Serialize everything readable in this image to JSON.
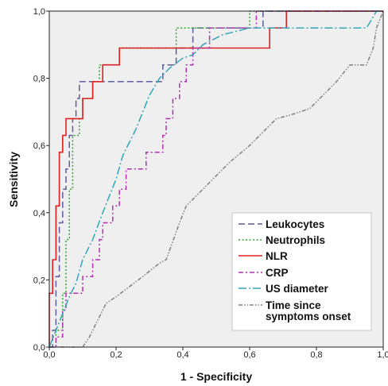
{
  "chart_data": {
    "type": "line",
    "title": "",
    "xlabel": "1 - Specificity",
    "ylabel": "Sensitivity",
    "xlim": [
      0,
      1
    ],
    "ylim": [
      0,
      1
    ],
    "xticks": [
      "0,0",
      "0,2",
      "0,4",
      "0,6",
      "0,8",
      "1,0"
    ],
    "yticks": [
      "0,0",
      "0,2",
      "0,4",
      "0,6",
      "0,8",
      "1,0"
    ],
    "grid": false,
    "legend_position": "bottom-right",
    "background": "#efefef",
    "series": [
      {
        "name": "Leukocytes",
        "color": "#5c5c9c",
        "dash": "long-dash",
        "x": [
          0,
          0.01,
          0.01,
          0.02,
          0.02,
          0.03,
          0.03,
          0.04,
          0.04,
          0.05,
          0.05,
          0.06,
          0.06,
          0.07,
          0.07,
          0.08,
          0.08,
          0.09,
          0.09,
          0.1,
          0.1,
          0.34,
          0.34,
          0.38,
          0.38,
          0.43,
          0.43,
          0.64,
          0.64,
          0.72,
          0.72,
          0.98,
          0.98,
          1
        ],
        "y": [
          0,
          0,
          0.05,
          0.05,
          0.21,
          0.21,
          0.37,
          0.37,
          0.47,
          0.47,
          0.53,
          0.53,
          0.63,
          0.63,
          0.68,
          0.68,
          0.74,
          0.74,
          0.79,
          0.79,
          0.79,
          0.79,
          0.84,
          0.84,
          0.89,
          0.89,
          0.95,
          0.95,
          1.0,
          1.0,
          1.0,
          1.0,
          1.0,
          1.0
        ]
      },
      {
        "name": "Neutrophils",
        "color": "#2aa82a",
        "dash": "dotted",
        "x": [
          0,
          0.02,
          0.02,
          0.04,
          0.04,
          0.05,
          0.05,
          0.06,
          0.06,
          0.07,
          0.07,
          0.09,
          0.09,
          0.1,
          0.1,
          0.13,
          0.13,
          0.15,
          0.15,
          0.21,
          0.21,
          0.34,
          0.34,
          0.38,
          0.38,
          0.6,
          0.6,
          0.71,
          0.71,
          0.98,
          0.98,
          1
        ],
        "y": [
          0,
          0,
          0.05,
          0.05,
          0.16,
          0.16,
          0.32,
          0.32,
          0.47,
          0.47,
          0.63,
          0.63,
          0.68,
          0.68,
          0.74,
          0.74,
          0.79,
          0.79,
          0.84,
          0.84,
          0.89,
          0.89,
          0.89,
          0.89,
          0.95,
          0.95,
          1.0,
          1.0,
          1.0,
          1.0,
          1.0,
          1.0
        ]
      },
      {
        "name": "NLR",
        "color": "#e02020",
        "dash": "solid",
        "x": [
          0,
          0,
          0.01,
          0.01,
          0.02,
          0.02,
          0.03,
          0.03,
          0.04,
          0.04,
          0.05,
          0.05,
          0.06,
          0.06,
          0.07,
          0.07,
          0.1,
          0.1,
          0.13,
          0.13,
          0.16,
          0.16,
          0.21,
          0.21,
          0.66,
          0.66,
          0.71,
          0.71,
          1
        ],
        "y": [
          0,
          0.16,
          0.16,
          0.26,
          0.26,
          0.42,
          0.42,
          0.58,
          0.58,
          0.63,
          0.63,
          0.68,
          0.68,
          0.68,
          0.68,
          0.68,
          0.68,
          0.74,
          0.74,
          0.79,
          0.79,
          0.84,
          0.84,
          0.89,
          0.89,
          0.95,
          0.95,
          1.0,
          1.0
        ]
      },
      {
        "name": "CRP",
        "color": "#b030b0",
        "dash": "dash-dot",
        "x": [
          0,
          0.02,
          0.02,
          0.04,
          0.04,
          0.05,
          0.05,
          0.1,
          0.1,
          0.13,
          0.13,
          0.15,
          0.15,
          0.16,
          0.16,
          0.19,
          0.19,
          0.21,
          0.21,
          0.23,
          0.23,
          0.29,
          0.29,
          0.34,
          0.34,
          0.35,
          0.35,
          0.37,
          0.37,
          0.39,
          0.39,
          0.41,
          0.41,
          0.43,
          0.43,
          0.48,
          0.48,
          0.54,
          0.54,
          0.62,
          0.62,
          0.74,
          0.74,
          0.88,
          0.88,
          0.96,
          0.96,
          0.98,
          0.98,
          1
        ],
        "y": [
          0,
          0,
          0.03,
          0.03,
          0.11,
          0.11,
          0.16,
          0.16,
          0.21,
          0.21,
          0.26,
          0.26,
          0.32,
          0.32,
          0.37,
          0.37,
          0.42,
          0.42,
          0.47,
          0.47,
          0.53,
          0.53,
          0.58,
          0.58,
          0.63,
          0.63,
          0.68,
          0.68,
          0.74,
          0.74,
          0.79,
          0.79,
          0.84,
          0.84,
          0.89,
          0.89,
          0.95,
          0.95,
          0.95,
          0.95,
          1.0,
          1.0,
          1.0,
          1.0,
          1.0,
          1.0,
          1.0,
          1.0,
          1.0,
          1.0
        ]
      },
      {
        "name": "US diameter",
        "color": "#30a6b8",
        "dash": "long-dash-dot",
        "x": [
          0,
          0.02,
          0.04,
          0.06,
          0.08,
          0.1,
          0.13,
          0.16,
          0.2,
          0.22,
          0.24,
          0.26,
          0.28,
          0.3,
          0.33,
          0.36,
          0.4,
          0.43,
          0.46,
          0.52,
          0.6,
          0.7,
          0.85,
          0.95,
          0.98,
          1
        ],
        "y": [
          0,
          0.05,
          0.1,
          0.15,
          0.19,
          0.26,
          0.32,
          0.4,
          0.5,
          0.57,
          0.61,
          0.65,
          0.7,
          0.75,
          0.8,
          0.83,
          0.86,
          0.87,
          0.9,
          0.93,
          0.95,
          0.95,
          0.95,
          0.95,
          1.0,
          1.0
        ]
      },
      {
        "name": "Time since\nsymptoms onset",
        "color": "#808080",
        "dash": "dash-dot-dot",
        "x": [
          0,
          0.1,
          0.12,
          0.14,
          0.17,
          0.2,
          0.24,
          0.28,
          0.33,
          0.35,
          0.39,
          0.41,
          0.44,
          0.49,
          0.54,
          0.6,
          0.66,
          0.68,
          0.72,
          0.78,
          0.86,
          0.9,
          0.93,
          0.95,
          0.97,
          0.98,
          1
        ],
        "y": [
          0,
          0,
          0.03,
          0.07,
          0.13,
          0.15,
          0.18,
          0.21,
          0.25,
          0.26,
          0.37,
          0.42,
          0.45,
          0.5,
          0.55,
          0.6,
          0.66,
          0.68,
          0.69,
          0.71,
          0.79,
          0.84,
          0.84,
          0.84,
          0.89,
          0.95,
          1.0
        ]
      }
    ]
  }
}
